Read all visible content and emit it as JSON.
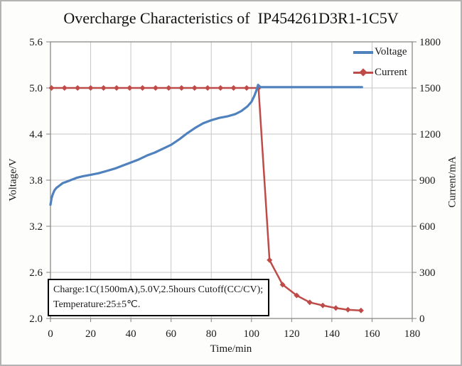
{
  "chart_data": {
    "type": "line",
    "title": "Overcharge Characteristics of  IP454261D3R1-1C5V",
    "grid": true,
    "legend_position": "top-right-inside",
    "x_axis": {
      "label": "Time/min",
      "min": 0,
      "max": 180,
      "tick_step": 20,
      "ticks": [
        0,
        20,
        40,
        60,
        80,
        100,
        120,
        140,
        160,
        180
      ],
      "tick_labels": [
        "0",
        "20",
        "40",
        "60",
        "80",
        "100",
        "120",
        "140",
        "160",
        "180"
      ]
    },
    "y_left": {
      "label": "Voltage/V",
      "min": 2.0,
      "max": 5.6,
      "tick_step": 0.6,
      "ticks": [
        5.6,
        5.0,
        4.4,
        3.8,
        3.2,
        2.6,
        2.0
      ],
      "tick_labels": [
        "5.6",
        "5.0",
        "4.4",
        "3.8",
        "3.2",
        "2.6",
        "2.0"
      ]
    },
    "y_right": {
      "label": "Current/mA",
      "min": 0,
      "max": 1800,
      "tick_step": 300,
      "ticks": [
        1800,
        1500,
        1200,
        900,
        600,
        300,
        0
      ],
      "tick_labels": [
        "1800",
        "1500",
        "1200",
        "900",
        "600",
        "300",
        "0"
      ]
    },
    "series": [
      {
        "name": "Current",
        "axis": "right",
        "color": "#be4b48",
        "marker": "diamond",
        "line_width": 2.5,
        "points": [
          [
            0.5,
            1500
          ],
          [
            7,
            1500
          ],
          [
            13.5,
            1500
          ],
          [
            20,
            1500
          ],
          [
            26.4,
            1500
          ],
          [
            32.9,
            1500
          ],
          [
            39.4,
            1500
          ],
          [
            45.8,
            1500
          ],
          [
            52.3,
            1500
          ],
          [
            58.8,
            1500
          ],
          [
            65.2,
            1500
          ],
          [
            71.7,
            1500
          ],
          [
            78.2,
            1500
          ],
          [
            84.6,
            1500
          ],
          [
            91.1,
            1500
          ],
          [
            97.6,
            1500
          ],
          [
            103.5,
            1500
          ],
          [
            109,
            380
          ],
          [
            115.5,
            220
          ],
          [
            122.5,
            150
          ],
          [
            129,
            105
          ],
          [
            135.5,
            85
          ],
          [
            142,
            68
          ],
          [
            148,
            57
          ],
          [
            154.5,
            52
          ]
        ]
      },
      {
        "name": "Voltage",
        "axis": "left",
        "color": "#4f81bd",
        "marker": "none",
        "line_width": 3.2,
        "points": [
          [
            0,
            3.48
          ],
          [
            0.6,
            3.57
          ],
          [
            1.2,
            3.62
          ],
          [
            2,
            3.67
          ],
          [
            3,
            3.7
          ],
          [
            4.5,
            3.73
          ],
          [
            6,
            3.76
          ],
          [
            8,
            3.78
          ],
          [
            10,
            3.8
          ],
          [
            13,
            3.83
          ],
          [
            16,
            3.85
          ],
          [
            20,
            3.87
          ],
          [
            24,
            3.89
          ],
          [
            28,
            3.92
          ],
          [
            32,
            3.95
          ],
          [
            36,
            3.99
          ],
          [
            40,
            4.03
          ],
          [
            44,
            4.07
          ],
          [
            48,
            4.12
          ],
          [
            52,
            4.16
          ],
          [
            56,
            4.21
          ],
          [
            60,
            4.26
          ],
          [
            64,
            4.33
          ],
          [
            68,
            4.41
          ],
          [
            72,
            4.48
          ],
          [
            76,
            4.54
          ],
          [
            80,
            4.58
          ],
          [
            84,
            4.61
          ],
          [
            88,
            4.63
          ],
          [
            92,
            4.66
          ],
          [
            95,
            4.7
          ],
          [
            98,
            4.76
          ],
          [
            100,
            4.82
          ],
          [
            101.5,
            4.9
          ],
          [
            102.5,
            4.97
          ],
          [
            103.3,
            5.04
          ],
          [
            104.5,
            5.01
          ],
          [
            155,
            5.01
          ]
        ]
      }
    ],
    "legend": {
      "entries": [
        {
          "label": "Voltage",
          "color": "#4f81bd",
          "marker": "none"
        },
        {
          "label": "Current",
          "color": "#be4b48",
          "marker": "diamond"
        }
      ]
    },
    "annotation": {
      "line1": "Charge:1C(1500mA),5.0V,2.5hours Cutoff(CC/CV);",
      "line2": "Temperature:25±5℃."
    },
    "colors": {
      "gridline": "#c6c6c6",
      "axis_line": "#808080",
      "plot_background": "#ffffff",
      "text": "#1a1a1a"
    }
  }
}
